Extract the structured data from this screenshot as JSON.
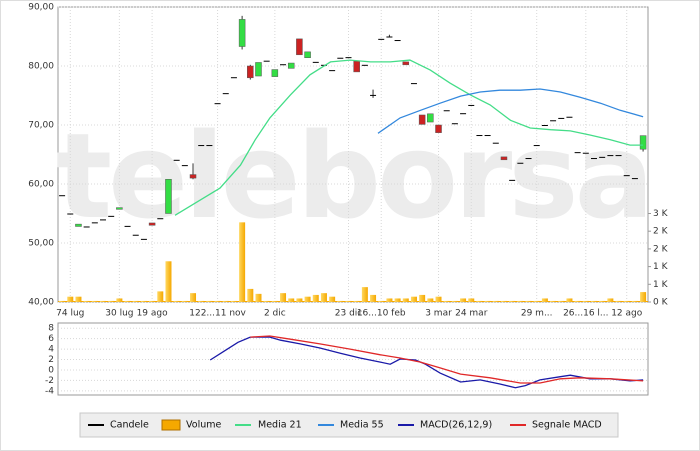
{
  "chart_data": [
    {
      "type": "candlestick",
      "watermark": "teleborsa",
      "grid": true,
      "up_color": "#33dd44",
      "down_color": "#cc2222",
      "categories": [
        null,
        "74 lug",
        null,
        null,
        null,
        null,
        null,
        "30 lug",
        null,
        null,
        null,
        "19 ago",
        null,
        null,
        null,
        null,
        null,
        null,
        null,
        "122...11 nov",
        null,
        null,
        null,
        null,
        null,
        null,
        "2 dic",
        null,
        null,
        null,
        null,
        null,
        null,
        null,
        null,
        "23 dic",
        null,
        null,
        null,
        "16...10 feb",
        null,
        null,
        null,
        null,
        null,
        null,
        "3 mar",
        null,
        null,
        null,
        "24 mar",
        null,
        null,
        null,
        null,
        null,
        null,
        null,
        "29 m...",
        null,
        null,
        null,
        null,
        null,
        "26...16 l...",
        null,
        null,
        null,
        null,
        "12 ago",
        null,
        null
      ],
      "xlim": [
        -0.5,
        71.6
      ],
      "ylim": [
        40,
        90
      ],
      "yticks": [
        {
          "value": 40,
          "label": "40,00"
        },
        {
          "value": 50,
          "label": "50,00"
        },
        {
          "value": 60,
          "label": "60,00"
        },
        {
          "value": 70,
          "label": "70,00"
        },
        {
          "value": 80,
          "label": "80,00"
        },
        {
          "value": 90,
          "label": "90,00"
        }
      ],
      "y2lim": [
        0,
        8333
      ],
      "y2ticks": [
        {
          "value": 0,
          "label": "0 K"
        },
        {
          "value": 500,
          "label": "1 K"
        },
        {
          "value": 1000,
          "label": "1 K"
        },
        {
          "value": 1500,
          "label": "2 K"
        },
        {
          "value": 2000,
          "label": "2 K"
        },
        {
          "value": 2500,
          "label": "3 K"
        }
      ],
      "series": [
        {
          "name": "Candele",
          "color": "#000000",
          "open": [
            58.1,
            55,
            52.8,
            52.8,
            53.5,
            54,
            54.6,
            55.7,
            52.9,
            51.4,
            50.7,
            53.4,
            54.2,
            55,
            64.1,
            63.2,
            61.6,
            66.6,
            66.6,
            73.7,
            75.4,
            78.1,
            83.3,
            80,
            78.3,
            80.9,
            78.2,
            80.3,
            79.6,
            84.6,
            81.4,
            80.7,
            80.2,
            79.3,
            81.4,
            81.5,
            80.8,
            80.2,
            75.1,
            84.6,
            85,
            84.4,
            80.7,
            77.1,
            71.7,
            70.5,
            70,
            72.5,
            70.3,
            72,
            73.4,
            68.3,
            68.3,
            67,
            64.6,
            60.7,
            63.6,
            64.4,
            66.6,
            70,
            70.8,
            71.2,
            71.4,
            65.4,
            65.3,
            64.4,
            64.6,
            64.9,
            64.9,
            61.5,
            61,
            65.9
          ],
          "high": [
            58.1,
            55,
            53.2,
            52.8,
            53.5,
            54,
            54.6,
            56,
            52.9,
            51.4,
            50.7,
            53.4,
            54.2,
            60.8,
            64.1,
            63.2,
            63.5,
            66.6,
            66.6,
            73.7,
            75.4,
            78.1,
            88.5,
            80.2,
            80.6,
            80.9,
            79.4,
            80.3,
            80.5,
            84.6,
            82.4,
            80.7,
            80.2,
            79.3,
            81.4,
            81.5,
            80.8,
            80.2,
            76,
            84.6,
            85.3,
            84.4,
            80.7,
            77.1,
            71.7,
            71.9,
            70,
            72.5,
            70.3,
            72,
            73.4,
            68.3,
            68.3,
            67,
            64.6,
            60.7,
            63.6,
            64.4,
            66.6,
            70,
            70.8,
            71.2,
            71.4,
            65.4,
            65.3,
            64.4,
            64.6,
            64.9,
            64.9,
            61.5,
            61,
            68.2
          ],
          "low": [
            58.1,
            55,
            52.8,
            52.8,
            53.5,
            54,
            54.6,
            55.7,
            52.9,
            51.4,
            50.7,
            53,
            54.2,
            55,
            64.1,
            63.2,
            60.8,
            66.6,
            66.6,
            73.7,
            75.4,
            78.1,
            82.8,
            77.7,
            78.3,
            80.9,
            78.2,
            80.3,
            79.6,
            81.9,
            81.4,
            80.7,
            80.2,
            79.3,
            81.4,
            81.5,
            79,
            80.2,
            74.6,
            84.6,
            85,
            84.4,
            80.2,
            77.1,
            70.1,
            70.5,
            68.7,
            72.5,
            70.3,
            72,
            73.4,
            68.3,
            68.3,
            67,
            64.1,
            60.7,
            63.6,
            64.4,
            66.6,
            70,
            70.8,
            71.2,
            71.4,
            65.4,
            65.3,
            64.4,
            64.6,
            64.9,
            64.9,
            61.5,
            61,
            65.5
          ],
          "close": [
            58.1,
            55,
            53.2,
            52.8,
            53.5,
            54,
            54.6,
            56,
            52.9,
            51.4,
            50.7,
            53,
            54.2,
            60.8,
            64.1,
            63.2,
            61,
            66.6,
            66.6,
            73.7,
            75.4,
            78.1,
            87.9,
            78,
            80.6,
            80.9,
            79.4,
            80.3,
            80.5,
            81.9,
            82.4,
            80.7,
            80.2,
            79.3,
            81.4,
            81.5,
            79,
            80.2,
            75.1,
            84.6,
            85,
            84.4,
            80.2,
            77.1,
            70.1,
            71.9,
            68.7,
            72.5,
            70.3,
            72,
            73.4,
            68.3,
            68.3,
            67,
            64.1,
            60.7,
            63.6,
            64.4,
            66.6,
            70,
            70.8,
            71.2,
            71.4,
            65.4,
            65.3,
            64.4,
            64.6,
            64.9,
            64.9,
            61.5,
            61,
            68.2
          ]
        },
        {
          "name": "Volume",
          "color": "#f5a800",
          "axis": "y2",
          "values": [
            30,
            150,
            150,
            30,
            30,
            30,
            30,
            100,
            30,
            30,
            30,
            30,
            300,
            1150,
            30,
            30,
            250,
            30,
            30,
            30,
            30,
            30,
            2250,
            370,
            230,
            30,
            30,
            250,
            100,
            100,
            150,
            200,
            250,
            150,
            30,
            30,
            30,
            420,
            200,
            30,
            100,
            100,
            100,
            150,
            200,
            100,
            150,
            30,
            30,
            100,
            100,
            30,
            30,
            30,
            30,
            30,
            30,
            30,
            30,
            100,
            30,
            30,
            100,
            30,
            30,
            30,
            30,
            100,
            30,
            30,
            30,
            280
          ]
        },
        {
          "name": "Media 21",
          "color": "#44dd88",
          "x": [
            13.8,
            16.9,
            19.3,
            21.8,
            23.6,
            25.4,
            27.9,
            30.3,
            32.8,
            35.2,
            37.7,
            40.1,
            42.5,
            45,
            47.4,
            49.9,
            52.3,
            54.8,
            57.2,
            59.7,
            62.1,
            64.5,
            67,
            69.4,
            71
          ],
          "values": [
            54.7,
            57.3,
            59.3,
            63.2,
            67.5,
            71.2,
            75.1,
            78.5,
            80.7,
            81,
            80.7,
            80.7,
            81,
            79.3,
            77.1,
            75.1,
            73.4,
            70.8,
            69.5,
            69.2,
            69,
            68.3,
            67.5,
            66.6,
            66.6
          ]
        },
        {
          "name": "Media 55",
          "color": "#3388dd",
          "x": [
            38.6,
            41.3,
            43.8,
            46.2,
            48.7,
            51.1,
            53.5,
            56,
            58.4,
            60.9,
            63.3,
            65.8,
            68.2,
            71
          ],
          "values": [
            68.6,
            71.2,
            72.5,
            73.7,
            74.9,
            75.6,
            75.9,
            75.9,
            76.1,
            75.6,
            74.7,
            73.7,
            72.5,
            71.4
          ]
        }
      ]
    },
    {
      "type": "line",
      "grid": true,
      "xlim": [
        -0.5,
        71.6
      ],
      "ylim": [
        -4.8,
        9
      ],
      "yticks": [
        8,
        6,
        4,
        2,
        0,
        -2,
        -4
      ],
      "series": [
        {
          "name": "MACD(26,12,9)",
          "color": "#1a1aa8",
          "x": [
            18.1,
            19.6,
            21.5,
            23,
            25.4,
            26.7,
            29.1,
            31.5,
            34,
            36.4,
            38.9,
            40.1,
            41.3,
            43.2,
            44.4,
            46.2,
            48.7,
            51.1,
            53.5,
            55.4,
            56.6,
            58.4,
            60.9,
            62.1,
            64.5,
            67,
            69.4,
            71
          ],
          "values": [
            1.9,
            3.4,
            5.3,
            6.3,
            6.3,
            5.7,
            5,
            4.2,
            3.2,
            2.3,
            1.5,
            1.1,
            2.1,
            1.9,
            1.1,
            -0.6,
            -2.3,
            -1.9,
            -2.7,
            -3.4,
            -3,
            -1.9,
            -1.3,
            -1,
            -1.7,
            -1.7,
            -2.1,
            -1.9
          ]
        },
        {
          "name": "Segnale MACD",
          "color": "#e02828",
          "x": [
            23,
            25.4,
            27.9,
            31.5,
            35.2,
            38.9,
            41.3,
            43.8,
            46.2,
            48.7,
            52.3,
            56,
            58.4,
            60.9,
            63.3,
            67,
            71
          ],
          "values": [
            6.3,
            6.5,
            5.9,
            5,
            4,
            2.9,
            2.3,
            1.5,
            0.4,
            -0.8,
            -1.5,
            -2.5,
            -2.5,
            -1.7,
            -1.5,
            -1.7,
            -2.1
          ]
        }
      ]
    }
  ]
}
